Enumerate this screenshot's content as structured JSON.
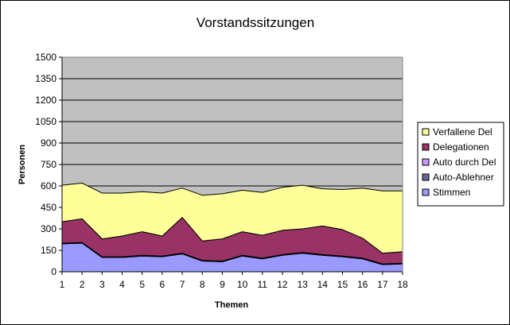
{
  "chart_data": {
    "type": "area",
    "stacked": true,
    "title": "Vorstandssitzungen",
    "xlabel": "Themen",
    "ylabel": "Personen",
    "ylim": [
      0,
      1500
    ],
    "yticks": [
      0,
      150,
      300,
      450,
      600,
      750,
      900,
      1050,
      1200,
      1350,
      1500
    ],
    "categories": [
      "1",
      "2",
      "3",
      "4",
      "5",
      "6",
      "7",
      "8",
      "9",
      "10",
      "11",
      "12",
      "13",
      "14",
      "15",
      "16",
      "17",
      "18"
    ],
    "grid": true,
    "legend_position": "right",
    "plot_background": "#c0c0c0",
    "series": [
      {
        "name": "Stimmen",
        "color": "#9999ff",
        "values": [
          195,
          200,
          100,
          100,
          110,
          105,
          125,
          75,
          70,
          110,
          90,
          115,
          130,
          115,
          105,
          90,
          50,
          55
        ]
      },
      {
        "name": "Auto-Ablehner",
        "color": "#666699",
        "values": [
          5,
          5,
          5,
          5,
          5,
          5,
          5,
          5,
          5,
          5,
          5,
          5,
          5,
          5,
          5,
          5,
          5,
          5
        ]
      },
      {
        "name": "Auto durch Del",
        "color": "#cc99ff",
        "values": [
          0,
          0,
          0,
          0,
          0,
          0,
          0,
          0,
          0,
          0,
          0,
          0,
          0,
          0,
          0,
          0,
          0,
          0
        ]
      },
      {
        "name": "Delegationen",
        "color": "#993366",
        "values": [
          150,
          165,
          125,
          145,
          165,
          140,
          250,
          135,
          155,
          165,
          160,
          170,
          165,
          200,
          185,
          140,
          75,
          80
        ]
      },
      {
        "name": "Verfallene Del",
        "color": "#ffff99",
        "values": [
          255,
          250,
          320,
          300,
          280,
          300,
          205,
          320,
          315,
          290,
          300,
          300,
          305,
          260,
          280,
          350,
          435,
          425
        ]
      }
    ],
    "legend_order": [
      "Verfallene Del",
      "Delegationen",
      "Auto durch Del",
      "Auto-Ablehner",
      "Stimmen"
    ]
  }
}
